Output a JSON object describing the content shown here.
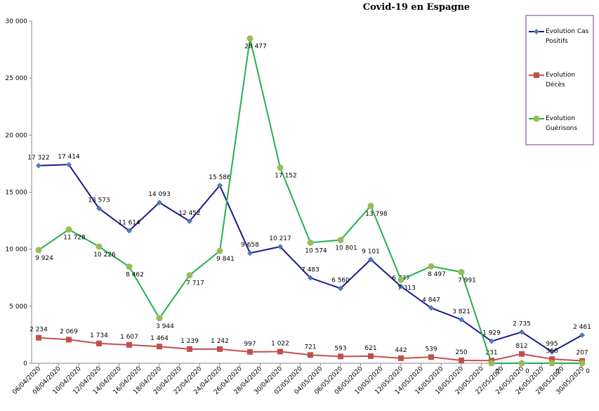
{
  "chart_data": {
    "type": "line",
    "title": "Covid-19 en Espagne",
    "x": [
      "06/04/2020",
      "09/04/2020",
      "12/04/2020",
      "15/04/2020",
      "18/04/2020",
      "21/04/2020",
      "24/04/2020",
      "27/04/2020",
      "30/04/2020",
      "03/05/2020",
      "06/05/2020",
      "09/05/2020",
      "12/05/2020",
      "15/05/2020",
      "18/05/2020",
      "21/05/2020",
      "24/05/2020",
      "27/05/2020",
      "30/05/2020"
    ],
    "xlim": [
      "06/04/2020",
      "30/05/2020"
    ],
    "xticks": [
      "06/04/2020",
      "08/04/2020",
      "10/04/2020",
      "12/04/2020",
      "14/04/2020",
      "16/04/2020",
      "18/04/2020",
      "20/04/2020",
      "22/04/2020",
      "24/04/2020",
      "26/04/2020",
      "28/04/2020",
      "30/04/2020",
      "02/05/2020",
      "04/05/2020",
      "06/05/2020",
      "08/05/2020",
      "10/05/2020",
      "12/05/2020",
      "14/05/2020",
      "16/05/2020",
      "18/05/2020",
      "20/05/2020",
      "22/05/2020",
      "24/05/2020",
      "26/05/2020",
      "28/05/2020",
      "30/05/2020"
    ],
    "ylim": [
      0,
      30000
    ],
    "yticks": [
      0,
      {
        "value": 5000,
        "label": "5 000"
      },
      {
        "value": 10000,
        "label": "10 000"
      },
      {
        "value": 15000,
        "label": "15 000"
      },
      {
        "value": 20000,
        "label": "20 000"
      },
      {
        "value": 25000,
        "label": "25 000"
      },
      {
        "value": 30000,
        "label": "30 000"
      }
    ],
    "legend": "right",
    "series": [
      {
        "name": "Evolution Cas Positifs",
        "color": "#1a1a8c",
        "marker_color": "#4a7ebb",
        "marker": "diamond",
        "values": [
          17322,
          17414,
          13573,
          11614,
          14093,
          12452,
          15586,
          9658,
          10217,
          7483,
          6560,
          9101,
          6737,
          4847,
          3821,
          1929,
          2735,
          995,
          2461
        ],
        "value_labels": [
          "17 322",
          "17 414",
          "13 573",
          "11 614",
          "14 093",
          "12 452",
          "15 586",
          "9 658",
          "10 217",
          "7 483",
          "6 560",
          "9 101",
          "6 737",
          "4 847",
          "3 821",
          "1 929",
          "2 735",
          "995",
          "2 461"
        ]
      },
      {
        "name": "Evolution Décès",
        "color": "#c0504d",
        "marker_color": "#c0504d",
        "marker": "square",
        "values": [
          2234,
          2069,
          1734,
          1607,
          1464,
          1239,
          1242,
          997,
          1022,
          721,
          593,
          621,
          442,
          539,
          250,
          231,
          812,
          366,
          207
        ],
        "value_labels": [
          "2 234",
          "2 069",
          "1 734",
          "1 607",
          "1 464",
          "1 239",
          "1 242",
          "997",
          "1 022",
          "721",
          "593",
          "621",
          "442",
          "539",
          "250",
          "231",
          "812",
          "366",
          "207"
        ]
      },
      {
        "name": "Evolution Guérisons",
        "color": "#22b04b",
        "marker_color": "#9bbb59",
        "marker": "circle",
        "values": [
          9924,
          11728,
          10226,
          8462,
          3944,
          7717,
          9841,
          28477,
          17152,
          10574,
          10801,
          13798,
          7313,
          8497,
          7991,
          0,
          0,
          0,
          0
        ],
        "value_labels": [
          "9 924",
          "11 728",
          "10 226",
          "8 462",
          "3 944",
          "7 717",
          "9 841",
          "28 477",
          "17 152",
          "10 574",
          "10 801",
          "13 798",
          "7 313",
          "8 497",
          "7 991",
          "0",
          "0",
          "0",
          "0"
        ]
      }
    ]
  }
}
